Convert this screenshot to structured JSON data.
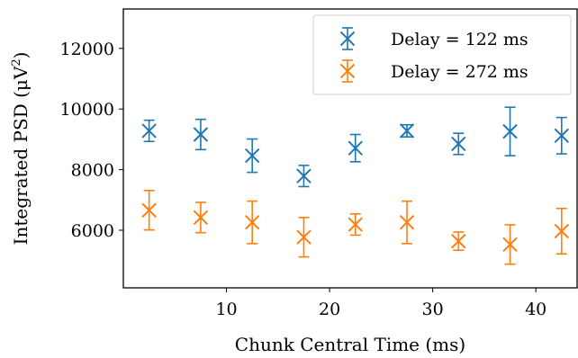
{
  "chart_data": {
    "type": "scatter",
    "title": "",
    "xlabel": "Chunk Central Time (ms)",
    "ylabel": "Integrated PSD (μV²)",
    "ylabel_parts": {
      "main": "Integrated PSD (μV",
      "sup": "2",
      "end": ")"
    },
    "xlim": [
      0,
      44
    ],
    "ylim": [
      4100,
      13300
    ],
    "xticks": [
      10,
      20,
      30,
      40
    ],
    "yticks": [
      6000,
      8000,
      10000,
      12000
    ],
    "grid": false,
    "legend_position": "top-right",
    "marker": "x with error bars",
    "x": [
      2.5,
      7.5,
      12.5,
      17.5,
      22.5,
      27.5,
      32.5,
      37.5,
      42.5
    ],
    "series": [
      {
        "name": "Delay = 122 ms",
        "color": "#1f77b4",
        "y": [
          9280,
          9160,
          8460,
          7790,
          8710,
          9280,
          8850,
          9260,
          9120
        ],
        "yerr": [
          350,
          500,
          550,
          350,
          450,
          200,
          350,
          800,
          600
        ]
      },
      {
        "name": "Delay = 272 ms",
        "color": "#ff7f0e",
        "y": [
          6660,
          6420,
          6260,
          5770,
          6190,
          6260,
          5640,
          5530,
          5970
        ],
        "yerr": [
          650,
          500,
          700,
          650,
          350,
          700,
          300,
          650,
          750
        ]
      }
    ]
  }
}
